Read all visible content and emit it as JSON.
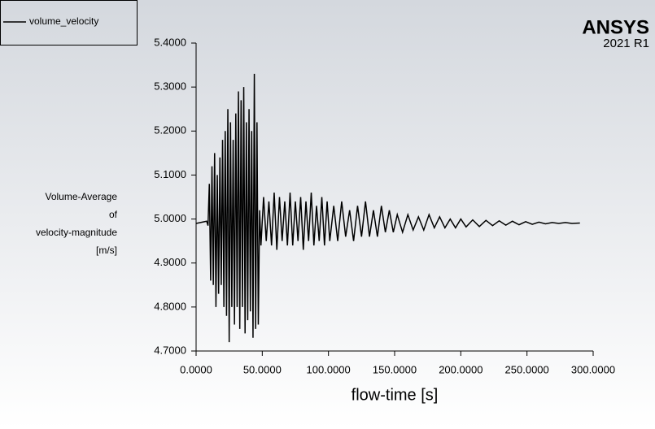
{
  "chart_data": {
    "type": "line",
    "xlabel": "flow-time [s]",
    "ylabel": [
      "Volume-Average",
      "of",
      "velocity-magnitude",
      "[m/s]"
    ],
    "logo_text": "ANSYS",
    "logo_version": "2021 R1",
    "xlim": [
      0,
      300
    ],
    "ylim": [
      4.7,
      5.4
    ],
    "xticks": [
      {
        "value": 0,
        "label": "0.0000"
      },
      {
        "value": 50,
        "label": "50.0000"
      },
      {
        "value": 100,
        "label": "100.0000"
      },
      {
        "value": 150,
        "label": "150.0000"
      },
      {
        "value": 200,
        "label": "200.0000"
      },
      {
        "value": 250,
        "label": "250.0000"
      },
      {
        "value": 300,
        "label": "300.0000"
      }
    ],
    "yticks": [
      {
        "value": 4.7,
        "label": "4.7000"
      },
      {
        "value": 4.8,
        "label": "4.8000"
      },
      {
        "value": 4.9,
        "label": "4.9000"
      },
      {
        "value": 5.0,
        "label": "5.0000"
      },
      {
        "value": 5.1,
        "label": "5.1000"
      },
      {
        "value": 5.2,
        "label": "5.2000"
      },
      {
        "value": 5.3,
        "label": "5.3000"
      },
      {
        "value": 5.4,
        "label": "5.4000"
      }
    ],
    "grid": false,
    "legend": "upper left",
    "x": [
      0,
      8,
      9,
      10,
      11,
      12,
      13,
      14,
      15,
      16,
      17,
      18,
      19,
      20,
      21,
      22,
      23,
      24,
      25,
      26,
      27,
      28,
      29,
      30,
      31,
      32,
      33,
      34,
      35,
      36,
      37,
      38,
      39,
      40,
      41,
      42,
      43,
      44,
      45,
      46,
      47,
      48,
      49,
      51,
      53,
      55,
      57,
      59,
      61,
      63,
      65,
      67,
      69,
      71,
      73,
      75,
      77,
      79,
      81,
      83,
      85,
      87,
      89,
      91,
      93,
      95,
      97,
      99,
      101,
      104,
      107,
      110,
      113,
      116,
      119,
      122,
      125,
      128,
      131,
      134,
      137,
      140,
      143,
      146,
      149,
      152,
      156,
      160,
      164,
      168,
      172,
      176,
      180,
      184,
      188,
      192,
      196,
      200,
      204,
      209,
      214,
      219,
      224,
      229,
      234,
      239,
      244,
      249,
      254,
      259,
      264,
      269,
      274,
      279,
      284,
      290
    ],
    "series": [
      {
        "name": "volume_velocity",
        "color": "#000000",
        "values": [
          4.99,
          4.995,
          4.985,
          5.08,
          4.86,
          5.12,
          4.85,
          5.15,
          4.8,
          5.1,
          4.83,
          5.14,
          4.85,
          5.18,
          4.8,
          5.2,
          4.78,
          5.25,
          4.72,
          5.22,
          4.8,
          5.18,
          4.76,
          5.24,
          4.8,
          5.29,
          4.75,
          5.27,
          4.8,
          5.3,
          4.74,
          5.22,
          4.77,
          5.25,
          4.79,
          5.2,
          4.73,
          5.33,
          4.75,
          5.22,
          4.76,
          5.02,
          4.94,
          5.05,
          4.95,
          5.04,
          4.94,
          5.06,
          4.93,
          5.05,
          4.95,
          5.04,
          4.94,
          5.06,
          4.94,
          5.04,
          4.95,
          5.05,
          4.93,
          5.04,
          4.95,
          5.06,
          4.94,
          5.03,
          4.95,
          5.05,
          4.94,
          5.04,
          4.95,
          5.03,
          4.95,
          5.04,
          4.96,
          5.02,
          4.95,
          5.03,
          4.96,
          5.04,
          4.96,
          5.02,
          4.96,
          5.03,
          4.97,
          5.02,
          4.97,
          5.01,
          4.97,
          5.01,
          4.975,
          5.005,
          4.975,
          5.01,
          4.98,
          5.005,
          4.98,
          5.0,
          4.98,
          5.0,
          4.982,
          4.998,
          4.983,
          4.997,
          4.985,
          4.996,
          4.986,
          4.995,
          4.987,
          4.994,
          4.988,
          4.993,
          4.989,
          4.992,
          4.99,
          4.992,
          4.99,
          4.991
        ]
      }
    ]
  }
}
